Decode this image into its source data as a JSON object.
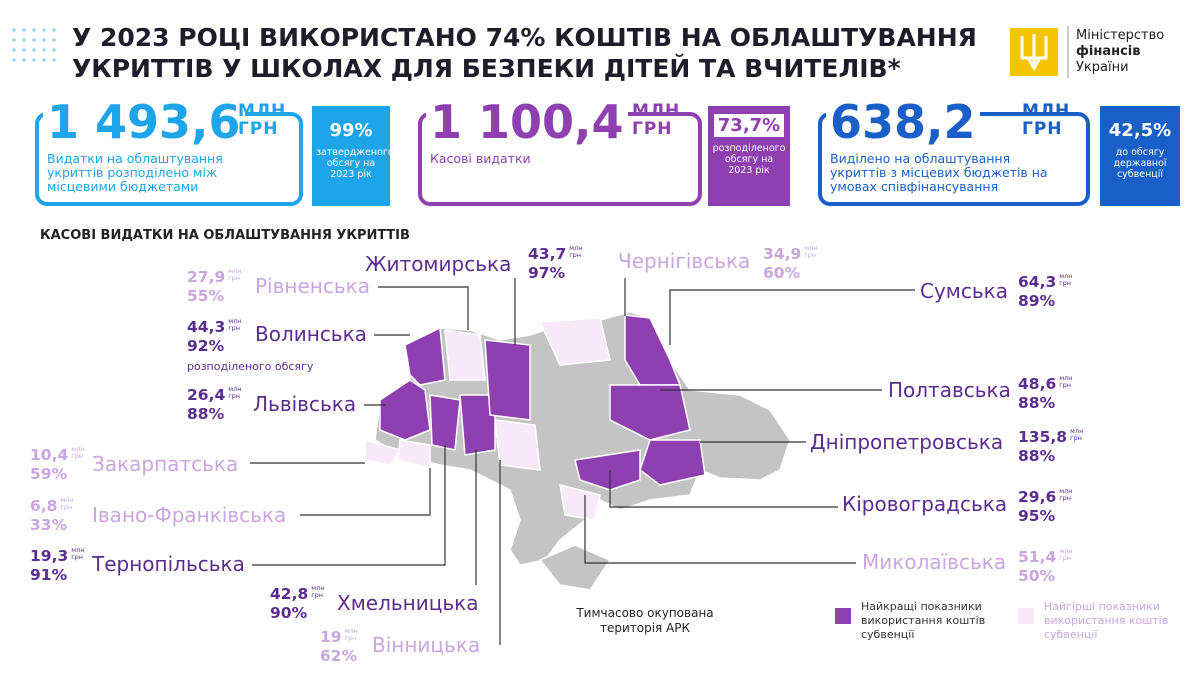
{
  "header": {
    "title_lines": [
      "У 2023 РОЦІ ВИКОРИСТАНО 74% КОШТІВ НА ОБЛАШТУВАННЯ",
      "УКРИТТІВ У ШКОЛАХ ДЛЯ БЕЗПЕКИ ДІТЕЙ ТА ВЧИТЕЛІВ*"
    ],
    "logo_lines": [
      "Міністерство",
      "фінансів",
      "України"
    ]
  },
  "cards": [
    {
      "amount": "1 493,6",
      "unit": [
        "МЛН",
        "ГРН"
      ],
      "description": "Видатки на облаштування укриттів розподілено між місцевими бюджетами",
      "badge_value": "99%",
      "badge_text": "затвердженого обсягу на 2023 рік",
      "color": "#1ea5e9"
    },
    {
      "amount": "1 100,4",
      "unit": [
        "МЛН",
        "ГРН"
      ],
      "description": "Касові видатки",
      "badge_value": "73,7%",
      "badge_text": "розподіленого обсягу на 2023 рік",
      "color": "#8e3fb0"
    },
    {
      "amount": "638,2",
      "unit": [
        "МЛН",
        "ГРН"
      ],
      "description": "Виділено на облаштування укриттів з місцевих бюджетів на умовах співфінансування",
      "badge_value": "42,5%",
      "badge_text": "до обсягу державної субвенції",
      "color": "#1a5fc8"
    }
  ],
  "section_title": "КАСОВІ ВИДАТКИ НА ОБЛАШТУВАННЯ УКРИТТІВ",
  "unit": [
    "млн",
    "грн"
  ],
  "regions": [
    {
      "name": "Рівненська",
      "amount": "27,9",
      "pct": "55%",
      "color": "#c9a6df"
    },
    {
      "name": "Волинська",
      "amount": "44,3",
      "pct": "92%",
      "note": "розподіленого обсягу",
      "color": "#5b2d8e"
    },
    {
      "name": "Львівська",
      "amount": "26,4",
      "pct": "88%",
      "color": "#5b2d8e"
    },
    {
      "name": "Закарпатська",
      "amount": "10,4",
      "pct": "59%",
      "color": "#c9a6df"
    },
    {
      "name": "Івано-Франківська",
      "amount": "6,8",
      "pct": "33%",
      "color": "#c9a6df"
    },
    {
      "name": "Тернопільська",
      "amount": "19,3",
      "pct": "91%",
      "color": "#5b2d8e"
    },
    {
      "name": "Хмельницька",
      "amount": "42,8",
      "pct": "90%",
      "color": "#5b2d8e"
    },
    {
      "name": "Вінницька",
      "amount": "19",
      "pct": "62%",
      "color": "#c9a6df"
    },
    {
      "name": "Житомирська",
      "amount": "43,7",
      "pct": "97%",
      "color": "#5b2d8e"
    },
    {
      "name": "Чернігівська",
      "amount": "34,9",
      "pct": "60%",
      "color": "#c9a6df"
    },
    {
      "name": "Сумська",
      "amount": "64,3",
      "pct": "89%",
      "color": "#5b2d8e"
    },
    {
      "name": "Полтавська",
      "amount": "48,6",
      "pct": "88%",
      "color": "#5b2d8e"
    },
    {
      "name": "Дніпропетровська",
      "amount": "135,8",
      "pct": "88%",
      "color": "#5b2d8e"
    },
    {
      "name": "Кіровоградська",
      "amount": "29,6",
      "pct": "95%",
      "color": "#5b2d8e"
    },
    {
      "name": "Миколаївська",
      "amount": "51,4",
      "pct": "50%",
      "color": "#c9a6df"
    }
  ],
  "map_note": "Тимчасово окупована територія АРК",
  "legend": [
    {
      "text": "Найкращі показники використання коштів субвенції",
      "color": "#8e3fb0"
    },
    {
      "text": "Найгірші показники використання коштів субвенції",
      "color": "#f7e9f7"
    }
  ]
}
